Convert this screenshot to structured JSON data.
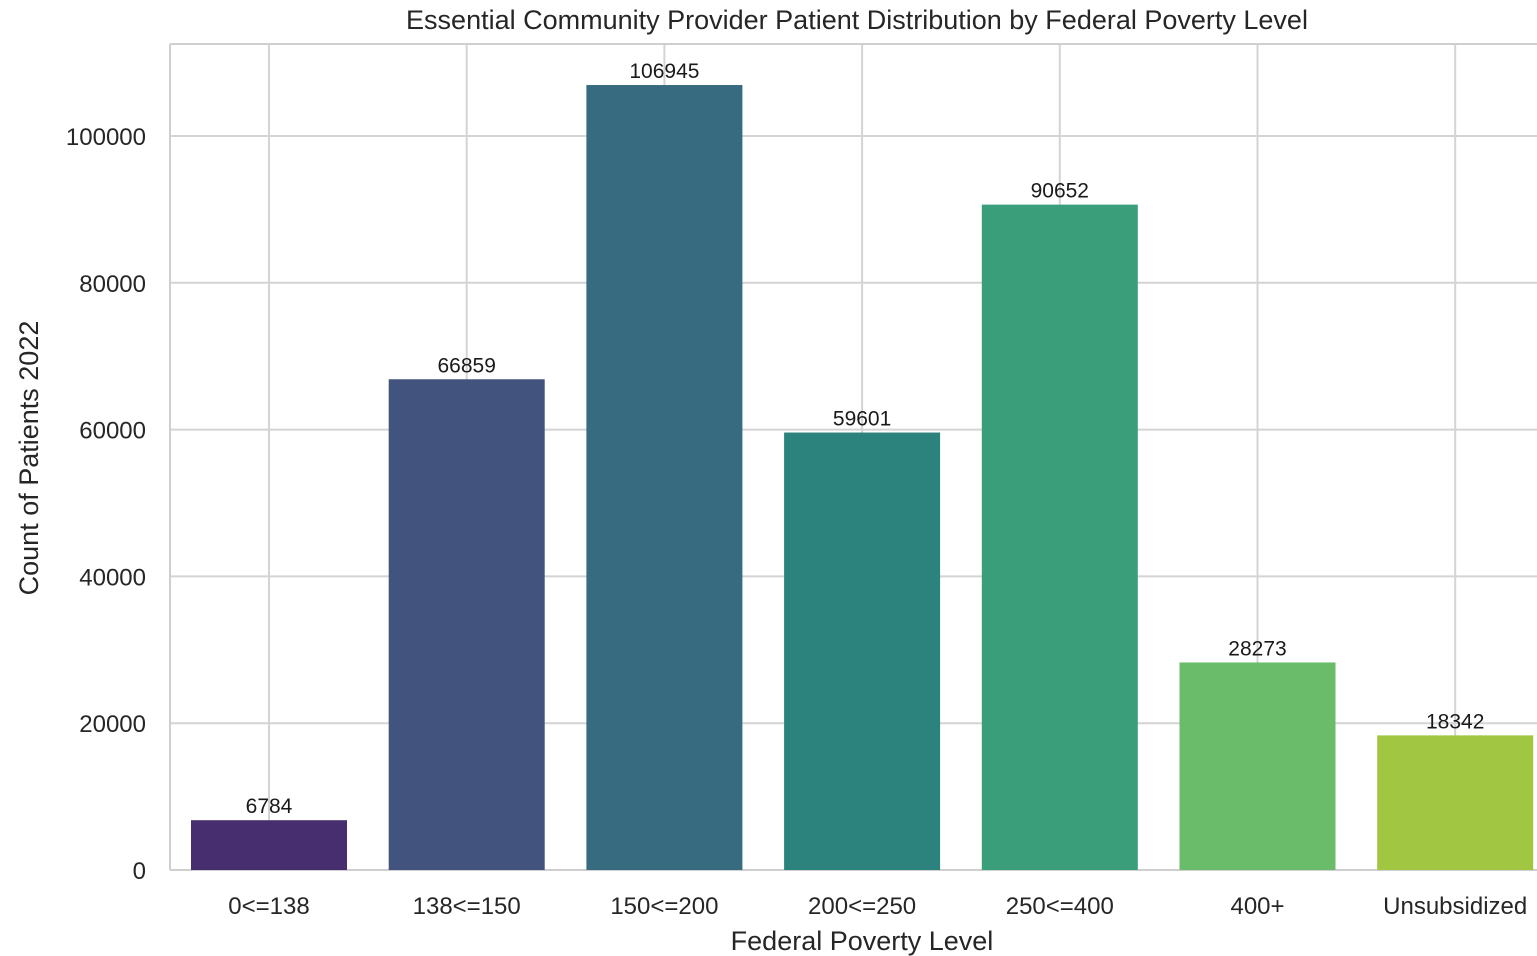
{
  "chart_data": {
    "type": "bar",
    "title": "Essential Community Provider Patient Distribution by Federal Poverty Level",
    "xlabel": "Federal Poverty Level",
    "ylabel": "Count of Patients 2022",
    "categories": [
      "0<=138",
      "138<=150",
      "150<=200",
      "200<=250",
      "250<=400",
      "400+",
      "Unsubsidized"
    ],
    "values": [
      6784,
      66859,
      106945,
      59601,
      90652,
      28273,
      18342
    ],
    "data_labels": [
      "6784",
      "66859",
      "106945",
      "59601",
      "90652",
      "28273",
      "18342"
    ],
    "colors": [
      "#472f6f",
      "#42547e",
      "#376b7f",
      "#2c837d",
      "#3a9e7b",
      "#6abb6a",
      "#a1c642"
    ],
    "ylim": [
      0,
      112000
    ],
    "yticks": [
      0,
      20000,
      40000,
      60000,
      80000,
      100000
    ],
    "ytick_labels": [
      "0",
      "20000",
      "40000",
      "60000",
      "80000",
      "100000"
    ],
    "grid": true,
    "style": "seaborn-whitegrid"
  }
}
